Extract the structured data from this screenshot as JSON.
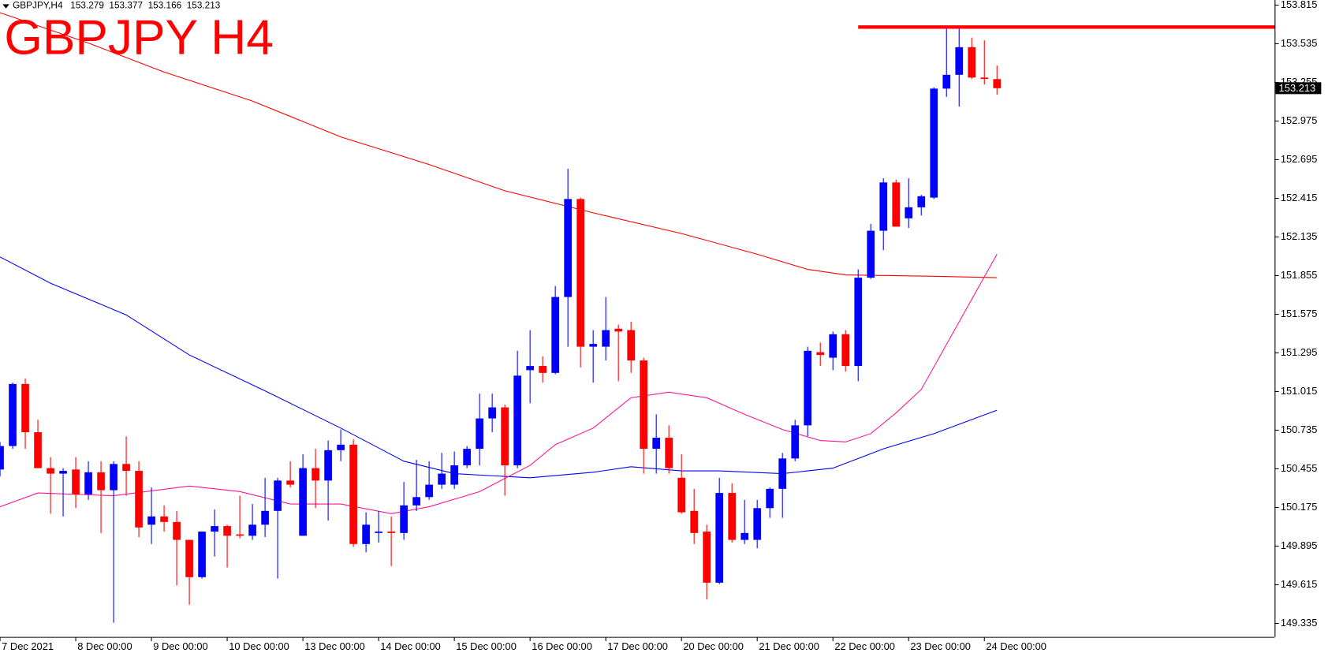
{
  "chart_data": {
    "type": "candlestick",
    "header_symbol": "GBPJPY,H4",
    "title": "GBPJPY H4",
    "up_color": "#0000ff",
    "down_color": "#ff0000",
    "xlim": [
      0,
      101
    ],
    "ylim": [
      149.237,
      153.852
    ],
    "yticks": [
      153.815,
      153.535,
      153.255,
      152.975,
      152.695,
      152.415,
      152.135,
      151.855,
      151.575,
      151.295,
      151.015,
      150.735,
      150.455,
      150.175,
      149.895,
      149.615,
      149.335
    ],
    "xticks": [
      {
        "value": 0,
        "label": "7 Dec 2021"
      },
      {
        "value": 6,
        "label": "8 Dec 00:00"
      },
      {
        "value": 12,
        "label": "9 Dec 00:00"
      },
      {
        "value": 18,
        "label": "10 Dec 00:00"
      },
      {
        "value": 24,
        "label": "13 Dec 00:00"
      },
      {
        "value": 30,
        "label": "14 Dec 00:00"
      },
      {
        "value": 36,
        "label": "15 Dec 00:00"
      },
      {
        "value": 42,
        "label": "16 Dec 00:00"
      },
      {
        "value": 48,
        "label": "17 Dec 00:00"
      },
      {
        "value": 54,
        "label": "20 Dec 00:00"
      },
      {
        "value": 60,
        "label": "21 Dec 00:00"
      },
      {
        "value": 66,
        "label": "22 Dec 00:00"
      },
      {
        "value": 72,
        "label": "23 Dec 00:00"
      },
      {
        "value": 78,
        "label": "24 Dec 00:00"
      }
    ],
    "candles": {
      "open": [
        150.45,
        150.62,
        151.07,
        150.72,
        150.46,
        150.42,
        150.45,
        150.27,
        150.43,
        150.3,
        150.49,
        150.44,
        150.05,
        150.11,
        150.07,
        149.94,
        149.67,
        150.0,
        150.04,
        149.98,
        149.97,
        150.05,
        150.15,
        150.37,
        149.97,
        150.46,
        150.37,
        150.59,
        150.63,
        149.91,
        149.99,
        150.0,
        149.99,
        150.19,
        150.25,
        150.34,
        150.34,
        150.48,
        150.6,
        150.82,
        150.9,
        150.48,
        151.17,
        151.2,
        151.15,
        151.7,
        152.41,
        151.34,
        151.34,
        151.47,
        151.46,
        151.24,
        150.6,
        150.68,
        150.39,
        150.15,
        150.0,
        149.63,
        150.28,
        149.94,
        149.94,
        150.17,
        150.31,
        150.53,
        150.77,
        151.3,
        151.26,
        151.43,
        151.2,
        151.84,
        152.18,
        152.53,
        152.27,
        152.35,
        152.42,
        153.21,
        153.31,
        153.51,
        153.29,
        153.279
      ],
      "high": [
        150.65,
        151.08,
        151.11,
        150.81,
        150.54,
        150.46,
        150.54,
        150.51,
        150.51,
        150.51,
        150.69,
        150.51,
        150.32,
        150.19,
        150.15,
        149.94,
        150.0,
        150.16,
        150.05,
        150.26,
        150.2,
        150.39,
        150.39,
        150.51,
        150.56,
        150.6,
        150.66,
        150.74,
        150.67,
        150.14,
        150.15,
        150.11,
        150.36,
        150.52,
        150.51,
        150.57,
        150.58,
        150.62,
        151.0,
        151.0,
        150.92,
        151.31,
        151.46,
        151.27,
        151.78,
        152.63,
        152.42,
        151.46,
        151.7,
        151.5,
        151.52,
        151.26,
        150.85,
        150.77,
        150.56,
        150.31,
        150.05,
        150.39,
        150.35,
        150.23,
        150.23,
        150.32,
        150.57,
        150.81,
        151.34,
        151.37,
        151.45,
        151.46,
        151.9,
        152.23,
        152.56,
        152.55,
        152.56,
        152.44,
        153.22,
        153.65,
        153.65,
        153.58,
        153.56,
        153.377
      ],
      "low": [
        150.4,
        150.6,
        150.6,
        150.46,
        150.13,
        150.11,
        150.17,
        150.23,
        149.99,
        149.34,
        150.26,
        149.96,
        149.91,
        150.0,
        149.61,
        149.47,
        149.66,
        149.82,
        149.74,
        149.95,
        149.94,
        149.96,
        149.66,
        150.32,
        149.97,
        150.17,
        150.08,
        150.51,
        149.89,
        149.85,
        149.92,
        149.75,
        149.94,
        150.15,
        150.23,
        150.31,
        150.31,
        150.46,
        150.48,
        150.72,
        150.26,
        150.46,
        150.93,
        151.08,
        151.14,
        151.34,
        151.19,
        151.08,
        151.24,
        151.09,
        151.15,
        150.42,
        150.42,
        150.42,
        150.13,
        149.91,
        149.51,
        149.62,
        149.92,
        149.91,
        149.88,
        150.1,
        150.1,
        150.51,
        150.69,
        151.2,
        151.17,
        151.16,
        151.09,
        151.83,
        152.04,
        152.21,
        152.2,
        152.29,
        152.41,
        153.15,
        153.08,
        153.28,
        153.24,
        153.166
      ],
      "close": [
        150.62,
        151.07,
        150.72,
        150.46,
        150.42,
        150.44,
        150.27,
        150.43,
        150.3,
        150.49,
        150.44,
        150.03,
        150.11,
        150.07,
        149.94,
        149.67,
        150.0,
        150.04,
        149.97,
        149.97,
        150.05,
        150.15,
        150.37,
        150.34,
        150.46,
        150.37,
        150.59,
        150.63,
        149.91,
        150.05,
        150.0,
        149.99,
        150.19,
        150.25,
        150.34,
        150.42,
        150.48,
        150.6,
        150.82,
        150.9,
        150.48,
        151.13,
        151.2,
        151.15,
        151.7,
        152.41,
        151.34,
        151.36,
        151.46,
        151.45,
        151.24,
        150.6,
        150.68,
        150.46,
        150.14,
        149.99,
        149.63,
        150.28,
        149.94,
        149.99,
        150.17,
        150.31,
        150.53,
        150.77,
        151.31,
        151.28,
        151.43,
        151.2,
        151.84,
        152.18,
        152.53,
        152.21,
        152.35,
        152.43,
        153.21,
        153.31,
        153.51,
        153.29,
        153.28,
        153.213
      ]
    },
    "moving_averages": [
      {
        "color": "#ff0000",
        "x": [
          0,
          7,
          13,
          20,
          27,
          34,
          40,
          47,
          54,
          60,
          64,
          67,
          74,
          79
        ],
        "values": [
          153.76,
          153.54,
          153.33,
          153.12,
          152.86,
          152.66,
          152.47,
          152.31,
          152.16,
          152.01,
          151.9,
          151.86,
          151.85,
          151.84
        ]
      },
      {
        "color": "#0000ff",
        "x": [
          0,
          4,
          10,
          15,
          21,
          27,
          32,
          36,
          42,
          47,
          50,
          54,
          57,
          62,
          66,
          70,
          74,
          79
        ],
        "values": [
          151.99,
          151.8,
          151.57,
          151.28,
          151.02,
          150.75,
          150.51,
          150.42,
          150.39,
          150.43,
          150.47,
          150.44,
          150.44,
          150.42,
          150.46,
          150.6,
          150.71,
          150.88
        ]
      },
      {
        "color": "#ff1493",
        "x": [
          0,
          3,
          9,
          15,
          19,
          23,
          27,
          31,
          34,
          38,
          42,
          44,
          47,
          50,
          53,
          56,
          59,
          62,
          65,
          67,
          69,
          71,
          73,
          76,
          79
        ],
        "values": [
          150.18,
          150.28,
          150.26,
          150.33,
          150.29,
          150.2,
          150.2,
          150.13,
          150.18,
          150.29,
          150.48,
          150.63,
          150.75,
          150.97,
          151.01,
          150.97,
          150.85,
          150.74,
          150.66,
          150.65,
          150.71,
          150.86,
          151.03,
          151.52,
          152.01
        ]
      }
    ],
    "level": {
      "value": 153.656,
      "x_start": 68,
      "color": "#ff0000"
    }
  }
}
